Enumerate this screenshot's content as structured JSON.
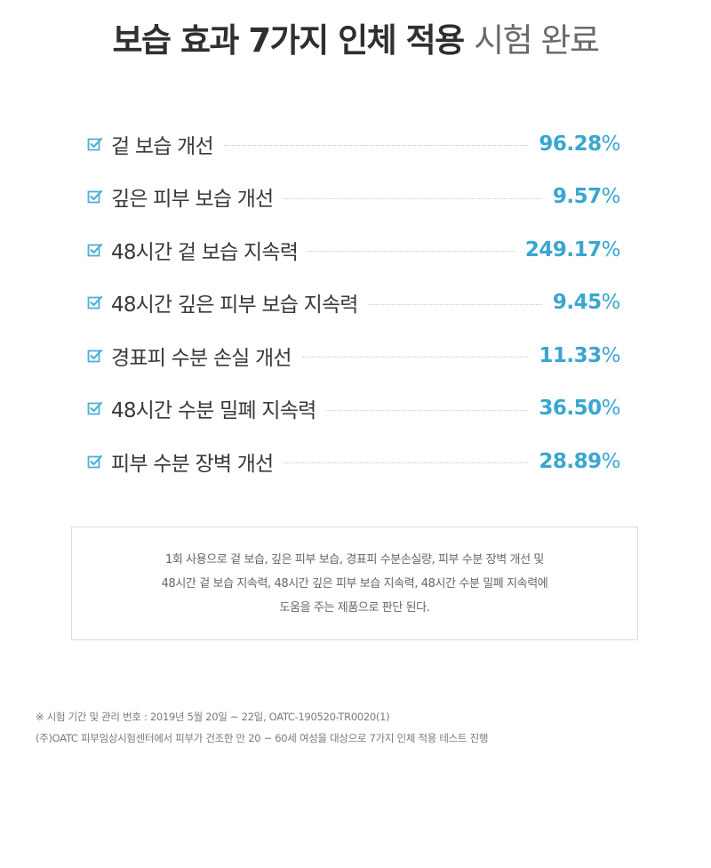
{
  "title": {
    "bold": "보습 효과 7가지 인체 적용",
    "light": "시험 완료"
  },
  "results": [
    {
      "label": "겉 보습 개선",
      "value": "96.28",
      "unit": "%"
    },
    {
      "label": "깊은 피부 보습 개선",
      "value": "9.57",
      "unit": "%"
    },
    {
      "label": "48시간 겉 보습 지속력",
      "value": "249.17",
      "unit": "%"
    },
    {
      "label": "48시간 깊은 피부 보습 지속력",
      "value": "9.45",
      "unit": "%"
    },
    {
      "label": "경표피 수분 손실 개선",
      "value": "11.33",
      "unit": "%"
    },
    {
      "label": "48시간 수분 밀폐 지속력",
      "value": "36.50",
      "unit": "%"
    },
    {
      "label": "피부 수분 장벽 개선",
      "value": "28.89",
      "unit": "%"
    }
  ],
  "note": [
    "1회 사용으로 겉 보습, 깊은 피부 보습, 경표피 수분손실량, 피부 수분 장벽 개선 및",
    "48시간 겉 보습 지속력, 48시간 깊은 피부 보습 지속력, 48시간 수분 밀폐 지속력에",
    "도움을 주는 제품으로 판단 된다."
  ],
  "footnotes": [
    "※ 시험 기간 및 관리 번호 : 2019년 5월 20일 ~ 22일,  OATC-190520-TR0020(1)",
    "(주)OATC 피부임상시험센터에서 피부가 건조한 만 20 ~ 60세 여성을 대상으로 7가지 인체 적용 테스트 진행"
  ],
  "colors": {
    "accent": "#3aa6cf",
    "check_icon": "#4fb0d6"
  },
  "icon": "checkbox-checked-icon"
}
